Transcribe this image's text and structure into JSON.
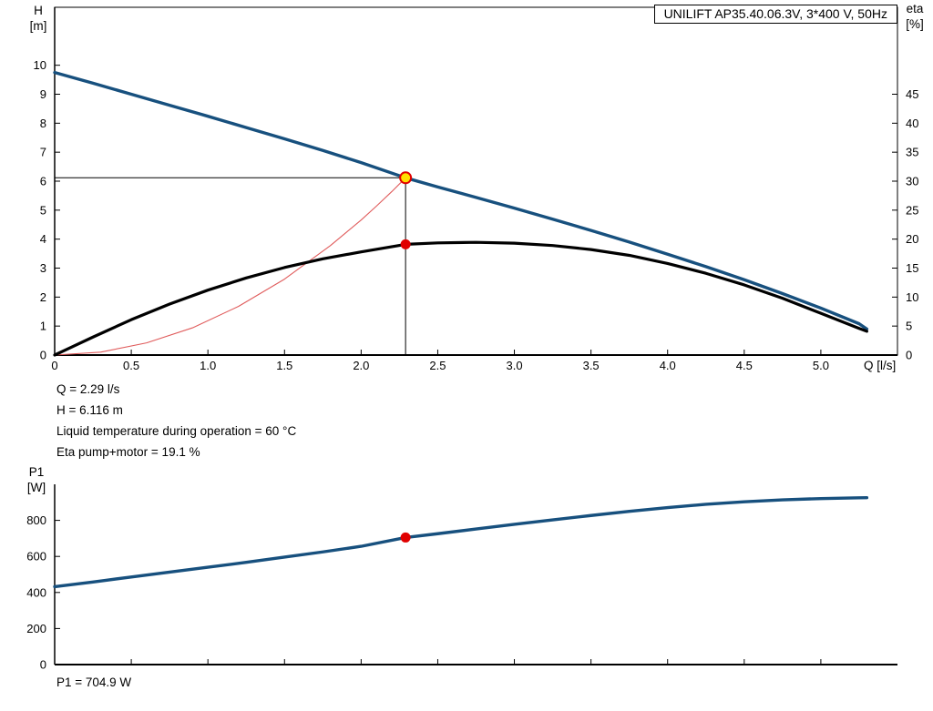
{
  "title_box": {
    "label": "UNILIFT AP35.40.06.3V, 3*400 V, 50Hz"
  },
  "axes": {
    "h_label_line1": "H",
    "h_label_line2": "[m]",
    "eta_label_line1": "eta",
    "eta_label_line2": "[%]",
    "q_label": "Q [l/s]",
    "p1_label_line1": "P1",
    "p1_label_line2": "[W]"
  },
  "readouts": {
    "q": "Q = 2.29 l/s",
    "h": "H = 6.116 m",
    "temp": "Liquid temperature during operation = 60 °C",
    "eta": "Eta pump+motor = 19.1 %",
    "p1": "P1 = 704.9 W"
  },
  "chart_data": [
    {
      "type": "line",
      "title": "UNILIFT AP35.40.06.3V, 3*400 V, 50Hz",
      "xlabel": "Q [l/s]",
      "ylabel_left": "H [m]",
      "ylabel_right": "eta [%]",
      "xlim": [
        0,
        5.5
      ],
      "ylim_left": [
        0,
        12
      ],
      "ylim_right": [
        0,
        60
      ],
      "grid": false,
      "x_tick_values": [
        0,
        0.5,
        1,
        1.5,
        2,
        2.5,
        3,
        3.5,
        4,
        4.5,
        5
      ],
      "x_tick_labels": [
        "0",
        "0.5",
        "1.0",
        "1.5",
        "2.0",
        "2.5",
        "3.0",
        "3.5",
        "4.0",
        "4.5",
        "5.0"
      ],
      "y_left_tick_values": [
        0,
        1,
        2,
        3,
        4,
        5,
        6,
        7,
        8,
        9,
        10
      ],
      "y_left_tick_labels": [
        "0",
        "1",
        "2",
        "3",
        "4",
        "5",
        "6",
        "7",
        "8",
        "9",
        "10"
      ],
      "y_right_tick_values": [
        0,
        5,
        10,
        15,
        20,
        25,
        30,
        35,
        40,
        45
      ],
      "y_right_tick_labels": [
        "0",
        "5",
        "10",
        "15",
        "20",
        "25",
        "30",
        "35",
        "40",
        "45"
      ],
      "series": [
        {
          "name": "head-curve",
          "axis": "left",
          "color": "#17507e",
          "width": 3.4,
          "points": [
            [
              0,
              9.75
            ],
            [
              0.25,
              9.38
            ],
            [
              0.5,
              9.0
            ],
            [
              0.75,
              8.62
            ],
            [
              1.0,
              8.24
            ],
            [
              1.25,
              7.85
            ],
            [
              1.5,
              7.46
            ],
            [
              1.75,
              7.06
            ],
            [
              2.0,
              6.64
            ],
            [
              2.29,
              6.116
            ],
            [
              2.5,
              5.8
            ],
            [
              2.75,
              5.44
            ],
            [
              3.0,
              5.07
            ],
            [
              3.25,
              4.69
            ],
            [
              3.5,
              4.3
            ],
            [
              3.75,
              3.9
            ],
            [
              4.0,
              3.48
            ],
            [
              4.25,
              3.05
            ],
            [
              4.5,
              2.6
            ],
            [
              4.75,
              2.12
            ],
            [
              5.0,
              1.62
            ],
            [
              5.25,
              1.08
            ],
            [
              5.3,
              0.9
            ]
          ]
        },
        {
          "name": "eta-curve",
          "axis": "right",
          "color": "#000000",
          "width": 3.2,
          "points": [
            [
              0,
              0
            ],
            [
              0.25,
              3.1
            ],
            [
              0.5,
              6.1
            ],
            [
              0.75,
              8.8
            ],
            [
              1.0,
              11.2
            ],
            [
              1.25,
              13.3
            ],
            [
              1.5,
              15.1
            ],
            [
              1.75,
              16.6
            ],
            [
              2.0,
              17.8
            ],
            [
              2.29,
              19.1
            ],
            [
              2.5,
              19.35
            ],
            [
              2.75,
              19.45
            ],
            [
              3.0,
              19.3
            ],
            [
              3.25,
              18.9
            ],
            [
              3.5,
              18.2
            ],
            [
              3.75,
              17.2
            ],
            [
              4.0,
              15.8
            ],
            [
              4.25,
              14.1
            ],
            [
              4.5,
              12.1
            ],
            [
              4.75,
              9.8
            ],
            [
              5.0,
              7.2
            ],
            [
              5.25,
              4.6
            ],
            [
              5.3,
              4.1
            ]
          ]
        },
        {
          "name": "system-curve",
          "axis": "left",
          "color": "#e05c5c",
          "width": 1.1,
          "points": [
            [
              0,
              0
            ],
            [
              0.3,
              0.1
            ],
            [
              0.6,
              0.42
            ],
            [
              0.9,
              0.94
            ],
            [
              1.2,
              1.68
            ],
            [
              1.5,
              2.62
            ],
            [
              1.8,
              3.78
            ],
            [
              2.0,
              4.66
            ],
            [
              2.1,
              5.14
            ],
            [
              2.2,
              5.64
            ],
            [
              2.29,
              6.116
            ]
          ]
        }
      ],
      "operating_point": {
        "q": 2.29,
        "h": 6.116,
        "eta_pct": 19.1,
        "marker_fill": "#ffdf00",
        "marker_stroke": "#e00000",
        "eta_marker_color": "#e00000"
      }
    },
    {
      "type": "line",
      "ylabel": "P1 [W]",
      "xlim": [
        0,
        5.5
      ],
      "ylim": [
        0,
        1000
      ],
      "grid": false,
      "y_tick_values": [
        0,
        200,
        400,
        600,
        800
      ],
      "y_tick_labels": [
        "0",
        "200",
        "400",
        "600",
        "800"
      ],
      "x_tick_values": [
        0,
        0.5,
        1,
        1.5,
        2,
        2.5,
        3,
        3.5,
        4,
        4.5,
        5
      ],
      "series": [
        {
          "name": "p1-curve",
          "color": "#17507e",
          "width": 3.4,
          "points": [
            [
              0,
              432
            ],
            [
              0.25,
              458
            ],
            [
              0.5,
              486
            ],
            [
              0.75,
              513
            ],
            [
              1.0,
              540
            ],
            [
              1.25,
              567
            ],
            [
              1.5,
              596
            ],
            [
              1.75,
              625
            ],
            [
              2.0,
              656
            ],
            [
              2.29,
              704.9
            ],
            [
              2.5,
              726
            ],
            [
              2.75,
              752
            ],
            [
              3.0,
              778
            ],
            [
              3.25,
              803
            ],
            [
              3.5,
              827
            ],
            [
              3.75,
              850
            ],
            [
              4.0,
              871
            ],
            [
              4.25,
              889
            ],
            [
              4.5,
              903
            ],
            [
              4.75,
              914
            ],
            [
              5.0,
              921
            ],
            [
              5.25,
              925
            ],
            [
              5.3,
              926
            ]
          ]
        }
      ],
      "operating_point": {
        "q": 2.29,
        "p1_w": 704.9,
        "marker_color": "#e00000"
      }
    }
  ]
}
